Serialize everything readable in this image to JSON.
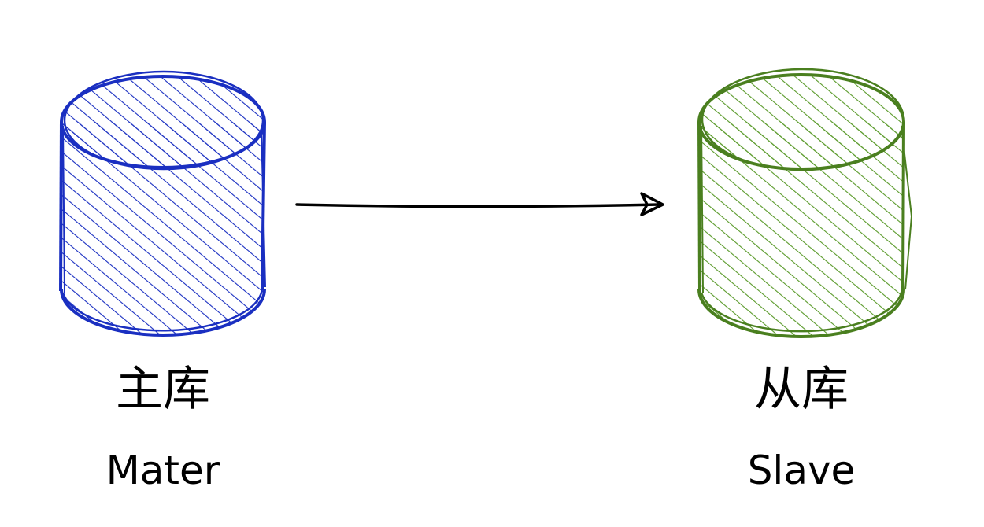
{
  "diagram": {
    "master": {
      "label_cn": "主库",
      "label_en": "Mater",
      "color": "#1a2fc1"
    },
    "slave": {
      "label_cn": "从库",
      "label_en": "Slave",
      "color": "#4a7f1f"
    },
    "arrow": {
      "color": "#000000"
    }
  }
}
